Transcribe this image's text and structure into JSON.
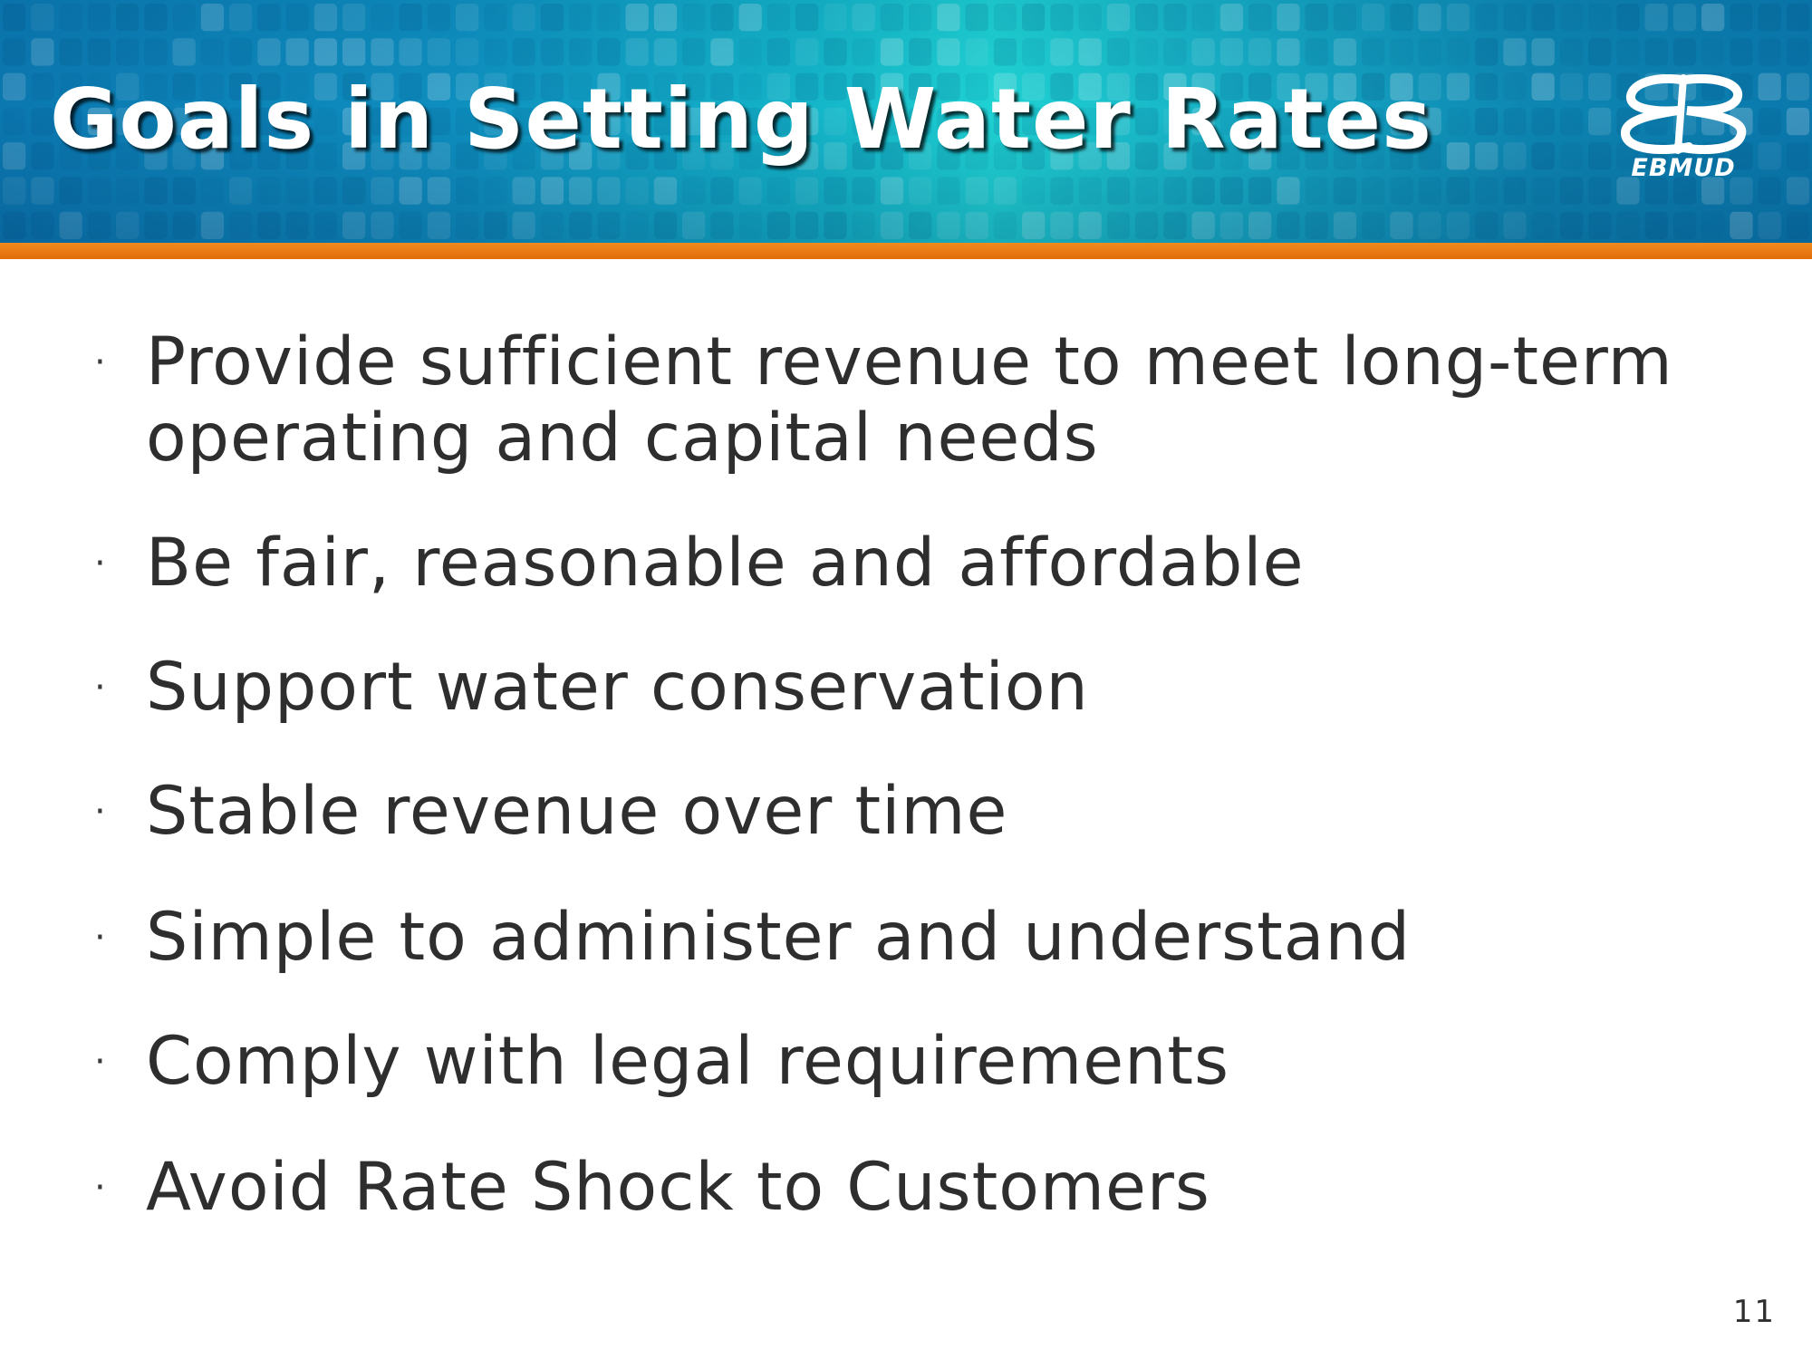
{
  "header": {
    "title": "Goals in Setting Water Rates",
    "logo_text": "EBMUD",
    "colors": {
      "banner_start": "#0b78b0",
      "banner_mid": "#1fd3d3",
      "accent_bar": "#e8780f",
      "title_text": "#ffffff"
    }
  },
  "content": {
    "bullets": [
      "Provide sufficient revenue to meet long-term operating and capital needs",
      "Be fair, reasonable and affordable",
      "Support water conservation",
      "Stable revenue over time",
      "Simple to administer and understand",
      "Comply with legal requirements",
      "Avoid Rate Shock to Customers"
    ],
    "bullet_glyph": "·",
    "text_color": "#2e2e2e"
  },
  "footer": {
    "page_number": "11"
  }
}
